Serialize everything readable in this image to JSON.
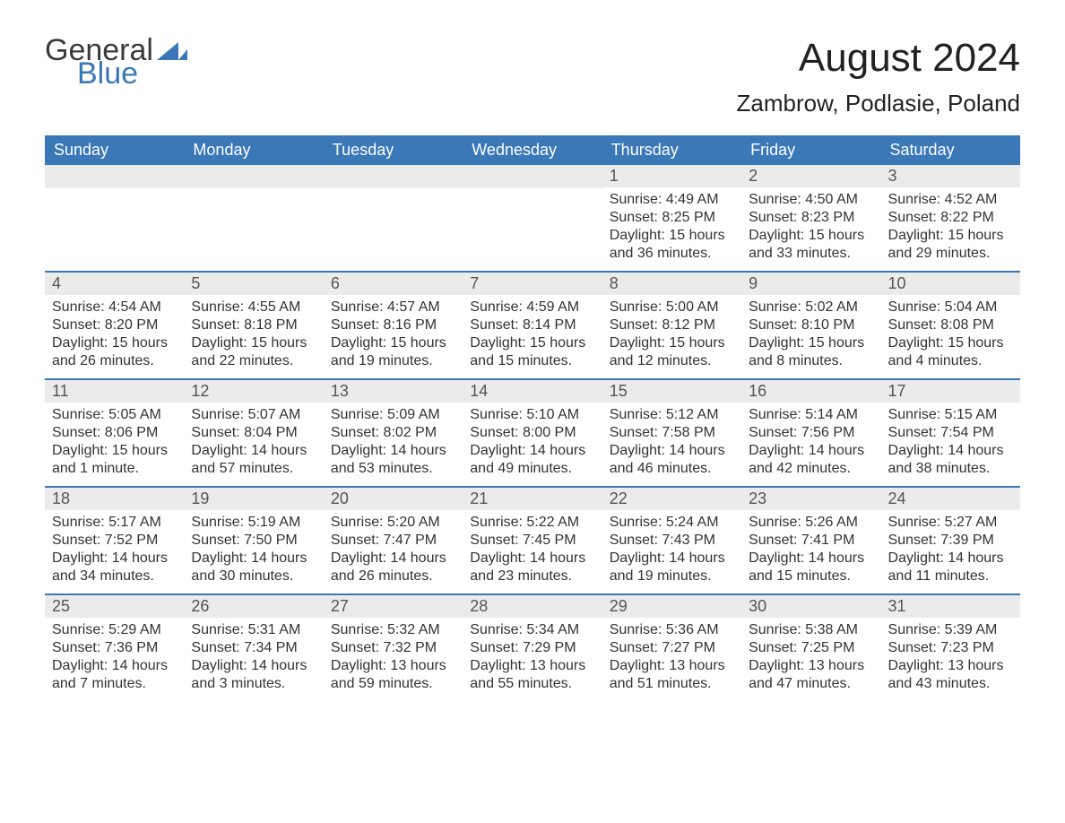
{
  "brand": {
    "part1": "General",
    "part2": "Blue"
  },
  "title": "August 2024",
  "location": "Zambrow, Podlasie, Poland",
  "colors": {
    "header_bg": "#3a78b8",
    "header_text": "#ffffff",
    "daynum_bg": "#ebebeb",
    "week_border": "#3a78b8",
    "text": "#333333",
    "background": "#ffffff"
  },
  "day_labels": [
    "Sunday",
    "Monday",
    "Tuesday",
    "Wednesday",
    "Thursday",
    "Friday",
    "Saturday"
  ],
  "weeks": [
    [
      null,
      null,
      null,
      null,
      {
        "n": "1",
        "sunrise": "Sunrise: 4:49 AM",
        "sunset": "Sunset: 8:25 PM",
        "daylight": "Daylight: 15 hours and 36 minutes."
      },
      {
        "n": "2",
        "sunrise": "Sunrise: 4:50 AM",
        "sunset": "Sunset: 8:23 PM",
        "daylight": "Daylight: 15 hours and 33 minutes."
      },
      {
        "n": "3",
        "sunrise": "Sunrise: 4:52 AM",
        "sunset": "Sunset: 8:22 PM",
        "daylight": "Daylight: 15 hours and 29 minutes."
      }
    ],
    [
      {
        "n": "4",
        "sunrise": "Sunrise: 4:54 AM",
        "sunset": "Sunset: 8:20 PM",
        "daylight": "Daylight: 15 hours and 26 minutes."
      },
      {
        "n": "5",
        "sunrise": "Sunrise: 4:55 AM",
        "sunset": "Sunset: 8:18 PM",
        "daylight": "Daylight: 15 hours and 22 minutes."
      },
      {
        "n": "6",
        "sunrise": "Sunrise: 4:57 AM",
        "sunset": "Sunset: 8:16 PM",
        "daylight": "Daylight: 15 hours and 19 minutes."
      },
      {
        "n": "7",
        "sunrise": "Sunrise: 4:59 AM",
        "sunset": "Sunset: 8:14 PM",
        "daylight": "Daylight: 15 hours and 15 minutes."
      },
      {
        "n": "8",
        "sunrise": "Sunrise: 5:00 AM",
        "sunset": "Sunset: 8:12 PM",
        "daylight": "Daylight: 15 hours and 12 minutes."
      },
      {
        "n": "9",
        "sunrise": "Sunrise: 5:02 AM",
        "sunset": "Sunset: 8:10 PM",
        "daylight": "Daylight: 15 hours and 8 minutes."
      },
      {
        "n": "10",
        "sunrise": "Sunrise: 5:04 AM",
        "sunset": "Sunset: 8:08 PM",
        "daylight": "Daylight: 15 hours and 4 minutes."
      }
    ],
    [
      {
        "n": "11",
        "sunrise": "Sunrise: 5:05 AM",
        "sunset": "Sunset: 8:06 PM",
        "daylight": "Daylight: 15 hours and 1 minute."
      },
      {
        "n": "12",
        "sunrise": "Sunrise: 5:07 AM",
        "sunset": "Sunset: 8:04 PM",
        "daylight": "Daylight: 14 hours and 57 minutes."
      },
      {
        "n": "13",
        "sunrise": "Sunrise: 5:09 AM",
        "sunset": "Sunset: 8:02 PM",
        "daylight": "Daylight: 14 hours and 53 minutes."
      },
      {
        "n": "14",
        "sunrise": "Sunrise: 5:10 AM",
        "sunset": "Sunset: 8:00 PM",
        "daylight": "Daylight: 14 hours and 49 minutes."
      },
      {
        "n": "15",
        "sunrise": "Sunrise: 5:12 AM",
        "sunset": "Sunset: 7:58 PM",
        "daylight": "Daylight: 14 hours and 46 minutes."
      },
      {
        "n": "16",
        "sunrise": "Sunrise: 5:14 AM",
        "sunset": "Sunset: 7:56 PM",
        "daylight": "Daylight: 14 hours and 42 minutes."
      },
      {
        "n": "17",
        "sunrise": "Sunrise: 5:15 AM",
        "sunset": "Sunset: 7:54 PM",
        "daylight": "Daylight: 14 hours and 38 minutes."
      }
    ],
    [
      {
        "n": "18",
        "sunrise": "Sunrise: 5:17 AM",
        "sunset": "Sunset: 7:52 PM",
        "daylight": "Daylight: 14 hours and 34 minutes."
      },
      {
        "n": "19",
        "sunrise": "Sunrise: 5:19 AM",
        "sunset": "Sunset: 7:50 PM",
        "daylight": "Daylight: 14 hours and 30 minutes."
      },
      {
        "n": "20",
        "sunrise": "Sunrise: 5:20 AM",
        "sunset": "Sunset: 7:47 PM",
        "daylight": "Daylight: 14 hours and 26 minutes."
      },
      {
        "n": "21",
        "sunrise": "Sunrise: 5:22 AM",
        "sunset": "Sunset: 7:45 PM",
        "daylight": "Daylight: 14 hours and 23 minutes."
      },
      {
        "n": "22",
        "sunrise": "Sunrise: 5:24 AM",
        "sunset": "Sunset: 7:43 PM",
        "daylight": "Daylight: 14 hours and 19 minutes."
      },
      {
        "n": "23",
        "sunrise": "Sunrise: 5:26 AM",
        "sunset": "Sunset: 7:41 PM",
        "daylight": "Daylight: 14 hours and 15 minutes."
      },
      {
        "n": "24",
        "sunrise": "Sunrise: 5:27 AM",
        "sunset": "Sunset: 7:39 PM",
        "daylight": "Daylight: 14 hours and 11 minutes."
      }
    ],
    [
      {
        "n": "25",
        "sunrise": "Sunrise: 5:29 AM",
        "sunset": "Sunset: 7:36 PM",
        "daylight": "Daylight: 14 hours and 7 minutes."
      },
      {
        "n": "26",
        "sunrise": "Sunrise: 5:31 AM",
        "sunset": "Sunset: 7:34 PM",
        "daylight": "Daylight: 14 hours and 3 minutes."
      },
      {
        "n": "27",
        "sunrise": "Sunrise: 5:32 AM",
        "sunset": "Sunset: 7:32 PM",
        "daylight": "Daylight: 13 hours and 59 minutes."
      },
      {
        "n": "28",
        "sunrise": "Sunrise: 5:34 AM",
        "sunset": "Sunset: 7:29 PM",
        "daylight": "Daylight: 13 hours and 55 minutes."
      },
      {
        "n": "29",
        "sunrise": "Sunrise: 5:36 AM",
        "sunset": "Sunset: 7:27 PM",
        "daylight": "Daylight: 13 hours and 51 minutes."
      },
      {
        "n": "30",
        "sunrise": "Sunrise: 5:38 AM",
        "sunset": "Sunset: 7:25 PM",
        "daylight": "Daylight: 13 hours and 47 minutes."
      },
      {
        "n": "31",
        "sunrise": "Sunrise: 5:39 AM",
        "sunset": "Sunset: 7:23 PM",
        "daylight": "Daylight: 13 hours and 43 minutes."
      }
    ]
  ]
}
